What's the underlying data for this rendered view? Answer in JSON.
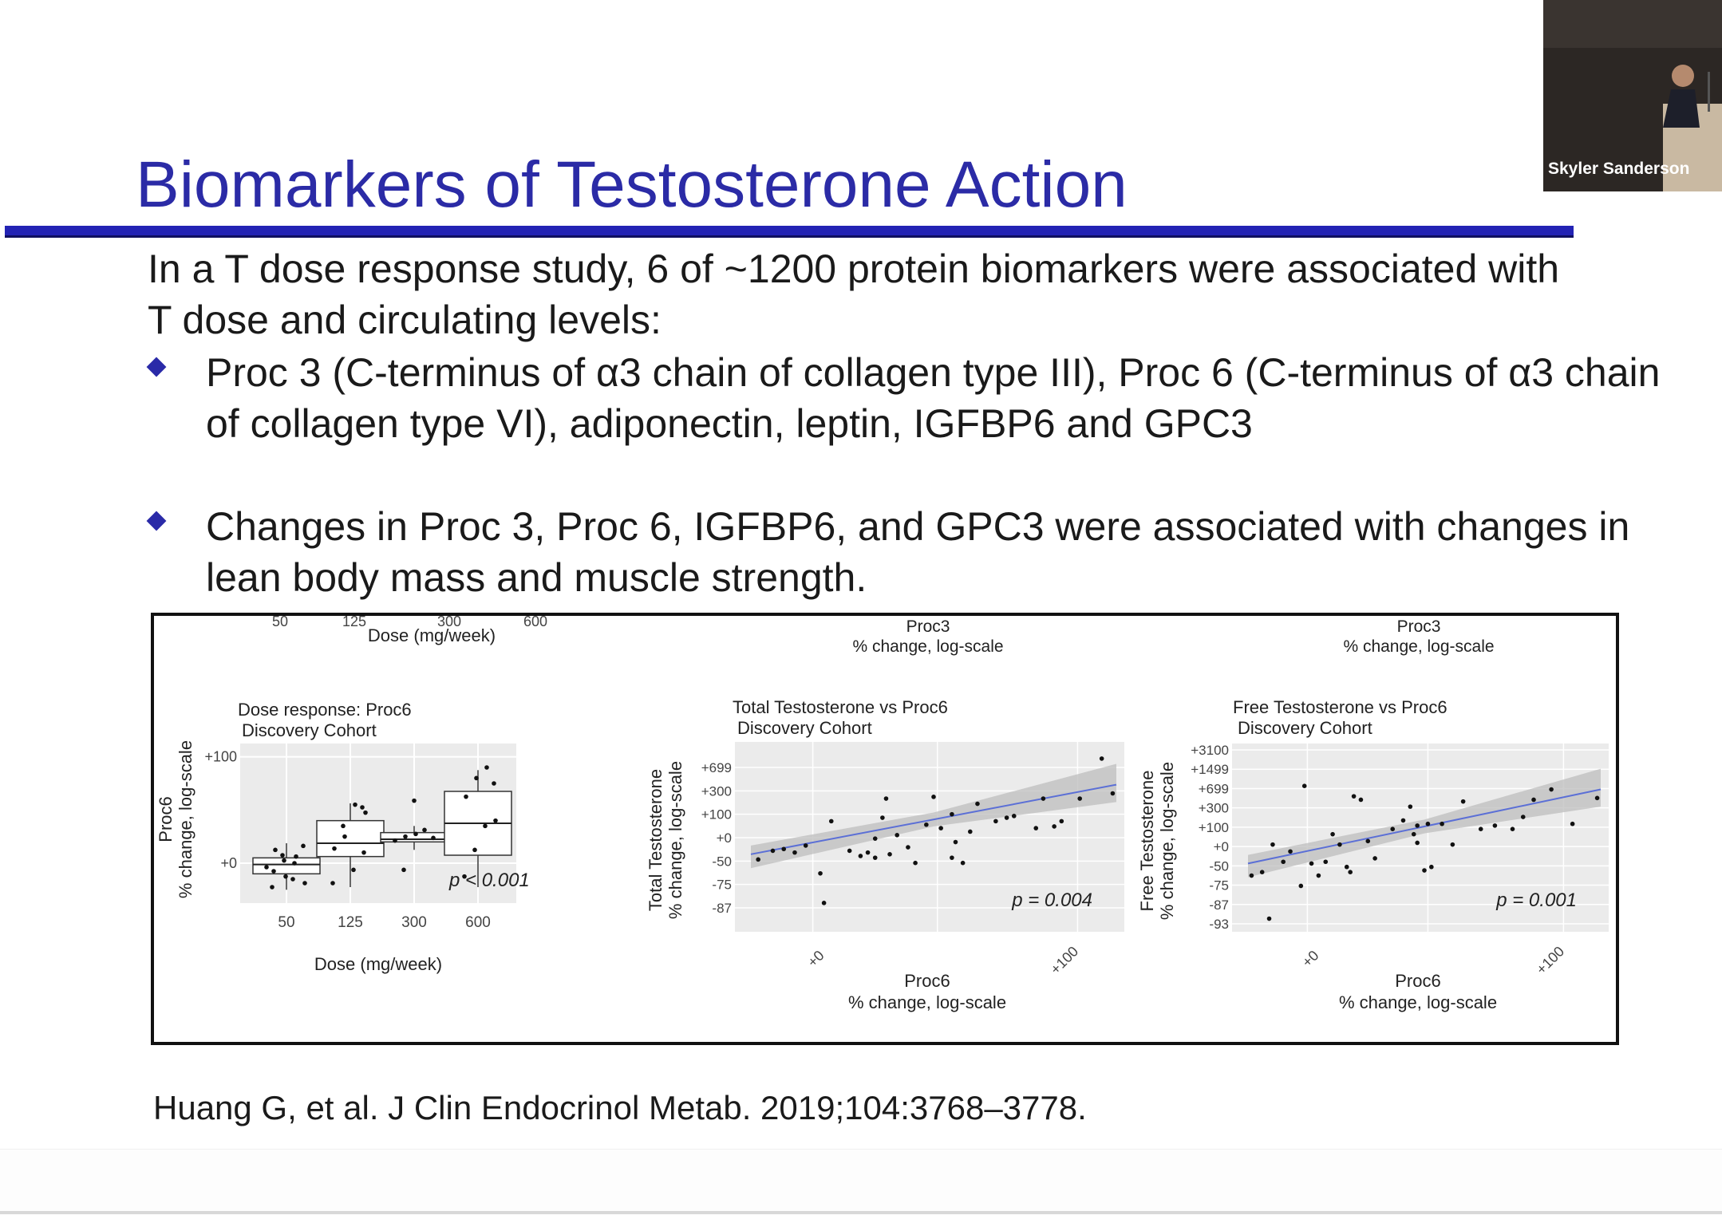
{
  "slide": {
    "title": "Biomarkers of Testosterone Action",
    "intro": "In a T dose response study, 6 of ~1200 protein biomarkers were associated with T dose and circulating levels:",
    "bullets": [
      "Proc 3 (C-terminus of α3 chain of collagen type III), Proc 6 (C-terminus of α3 chain of collagen type VI), adiponectin, leptin, IGFBP6 and GPC3",
      "Changes in Proc 3, Proc 6, IGFBP6, and GPC3 were associated with changes in lean body mass and muscle strength."
    ],
    "citation": "Huang G, et al. J Clin Endocrinol Metab. 2019;104:3768–3778."
  },
  "video": {
    "presenter_name": "Skyler Sanderson"
  },
  "colors": {
    "title": "#2b2ba6",
    "rule": "#2323b4",
    "bullet": "#2a2aa8",
    "fit_line": "#5b6fd6",
    "panel_bg": "#ebebeb"
  },
  "chart_data": [
    {
      "type": "box",
      "title": "Dose response: Proc6",
      "subtitle": "Discovery  Cohort",
      "xlabel": "Dose (mg/week)",
      "ylabel": "Proc6\n% change, log-scale",
      "categories": [
        "50",
        "125",
        "300",
        "600"
      ],
      "yticks": [
        "+100",
        "+0"
      ],
      "annotation": "p < 0.001",
      "cut_top_xticks": [
        "50",
        "125",
        "300",
        "600"
      ],
      "cut_top_xlabel": "Dose (mg/week)",
      "boxes": [
        {
          "q1": -8,
          "median": -1,
          "q3": 4,
          "low": -20,
          "high": 15
        },
        {
          "q1": 5,
          "median": 15,
          "q3": 32,
          "low": -18,
          "high": 45
        },
        {
          "q1": 16,
          "median": 18,
          "q3": 23,
          "low": 10,
          "high": 28
        },
        {
          "q1": 6,
          "median": 30,
          "q3": 54,
          "low": -18,
          "high": 70
        }
      ],
      "points": [
        [
          0,
          -3
        ],
        [
          0,
          5
        ],
        [
          0,
          -10
        ],
        [
          0,
          10
        ],
        [
          0,
          -15
        ],
        [
          0,
          0
        ],
        [
          0,
          2
        ],
        [
          0,
          -6
        ],
        [
          0,
          13
        ],
        [
          0,
          -12
        ],
        [
          0,
          6
        ],
        [
          0,
          -18
        ],
        [
          1,
          38
        ],
        [
          1,
          44
        ],
        [
          1,
          20
        ],
        [
          1,
          11
        ],
        [
          1,
          8
        ],
        [
          1,
          -5
        ],
        [
          1,
          28
        ],
        [
          1,
          -15
        ],
        [
          1,
          42
        ],
        [
          2,
          22
        ],
        [
          2,
          20
        ],
        [
          2,
          17
        ],
        [
          2,
          25
        ],
        [
          2,
          47
        ],
        [
          2,
          -5
        ],
        [
          2,
          19
        ],
        [
          3,
          72
        ],
        [
          3,
          64
        ],
        [
          3,
          50
        ],
        [
          3,
          32
        ],
        [
          3,
          28
        ],
        [
          3,
          10
        ],
        [
          3,
          -10
        ],
        [
          3,
          60
        ]
      ]
    },
    {
      "type": "scatter",
      "title": "Total Testosterone vs Proc6",
      "subtitle": "Discovery  Cohort",
      "xlabel": "Proc6\n% change, log-scale",
      "ylabel": "Total Testosterone\n% change, log-scale",
      "xticks": [
        "+0",
        "+100"
      ],
      "yticks": [
        "+699",
        "+300",
        "+100",
        "+0",
        "-50",
        "-75",
        "-87"
      ],
      "annotation": "p = 0.004",
      "cut_top_title": "Proc3\n% change, log-scale",
      "fit": {
        "x0": 0.0,
        "y0": 0.4,
        "x1": 1.0,
        "y1": 0.8
      },
      "points": [
        [
          0.02,
          0.37
        ],
        [
          0.06,
          0.42
        ],
        [
          0.09,
          0.43
        ],
        [
          0.12,
          0.41
        ],
        [
          0.15,
          0.45
        ],
        [
          0.22,
          0.59
        ],
        [
          0.19,
          0.29
        ],
        [
          0.2,
          0.12
        ],
        [
          0.27,
          0.42
        ],
        [
          0.3,
          0.39
        ],
        [
          0.34,
          0.38
        ],
        [
          0.34,
          0.49
        ],
        [
          0.36,
          0.61
        ],
        [
          0.37,
          0.72
        ],
        [
          0.4,
          0.51
        ],
        [
          0.43,
          0.44
        ],
        [
          0.48,
          0.57
        ],
        [
          0.5,
          0.73
        ],
        [
          0.52,
          0.55
        ],
        [
          0.55,
          0.63
        ],
        [
          0.56,
          0.47
        ],
        [
          0.58,
          0.35
        ],
        [
          0.6,
          0.53
        ],
        [
          0.62,
          0.69
        ],
        [
          0.67,
          0.59
        ],
        [
          0.7,
          0.61
        ],
        [
          0.72,
          0.62
        ],
        [
          0.78,
          0.55
        ],
        [
          0.8,
          0.72
        ],
        [
          0.83,
          0.56
        ],
        [
          0.85,
          0.59
        ],
        [
          0.9,
          0.72
        ],
        [
          0.96,
          0.95
        ],
        [
          0.99,
          0.75
        ],
        [
          0.55,
          0.38
        ],
        [
          0.45,
          0.35
        ],
        [
          0.38,
          0.4
        ],
        [
          0.32,
          0.41
        ]
      ]
    },
    {
      "type": "scatter",
      "title": "Free Testosterone vs Proc6",
      "subtitle": "Discovery  Cohort",
      "xlabel": "Proc6\n% change, log-scale",
      "ylabel": "Free Testosterone\n% change, log-scale",
      "xticks": [
        "+0",
        "+100"
      ],
      "yticks": [
        "+3100",
        "+1499",
        "+699",
        "+300",
        "+100",
        "+0",
        "-50",
        "-75",
        "-87",
        "-93"
      ],
      "annotation": "p = 0.001",
      "cut_top_title": "Proc3\n% change, log-scale",
      "fit": {
        "x0": 0.0,
        "y0": 0.35,
        "x1": 1.0,
        "y1": 0.78
      },
      "points": [
        [
          0.01,
          0.28
        ],
        [
          0.04,
          0.3
        ],
        [
          0.07,
          0.46
        ],
        [
          0.1,
          0.36
        ],
        [
          0.12,
          0.42
        ],
        [
          0.15,
          0.22
        ],
        [
          0.16,
          0.8
        ],
        [
          0.18,
          0.35
        ],
        [
          0.2,
          0.28
        ],
        [
          0.22,
          0.36
        ],
        [
          0.24,
          0.52
        ],
        [
          0.26,
          0.46
        ],
        [
          0.28,
          0.33
        ],
        [
          0.29,
          0.3
        ],
        [
          0.3,
          0.74
        ],
        [
          0.32,
          0.72
        ],
        [
          0.34,
          0.48
        ],
        [
          0.36,
          0.38
        ],
        [
          0.41,
          0.55
        ],
        [
          0.44,
          0.6
        ],
        [
          0.46,
          0.68
        ],
        [
          0.47,
          0.52
        ],
        [
          0.48,
          0.47
        ],
        [
          0.5,
          0.31
        ],
        [
          0.52,
          0.33
        ],
        [
          0.55,
          0.58
        ],
        [
          0.58,
          0.46
        ],
        [
          0.61,
          0.71
        ],
        [
          0.66,
          0.55
        ],
        [
          0.7,
          0.57
        ],
        [
          0.75,
          0.55
        ],
        [
          0.78,
          0.62
        ],
        [
          0.81,
          0.72
        ],
        [
          0.86,
          0.78
        ],
        [
          0.92,
          0.58
        ],
        [
          0.99,
          0.73
        ],
        [
          0.06,
          0.03
        ],
        [
          0.48,
          0.57
        ],
        [
          0.51,
          0.58
        ]
      ]
    }
  ]
}
